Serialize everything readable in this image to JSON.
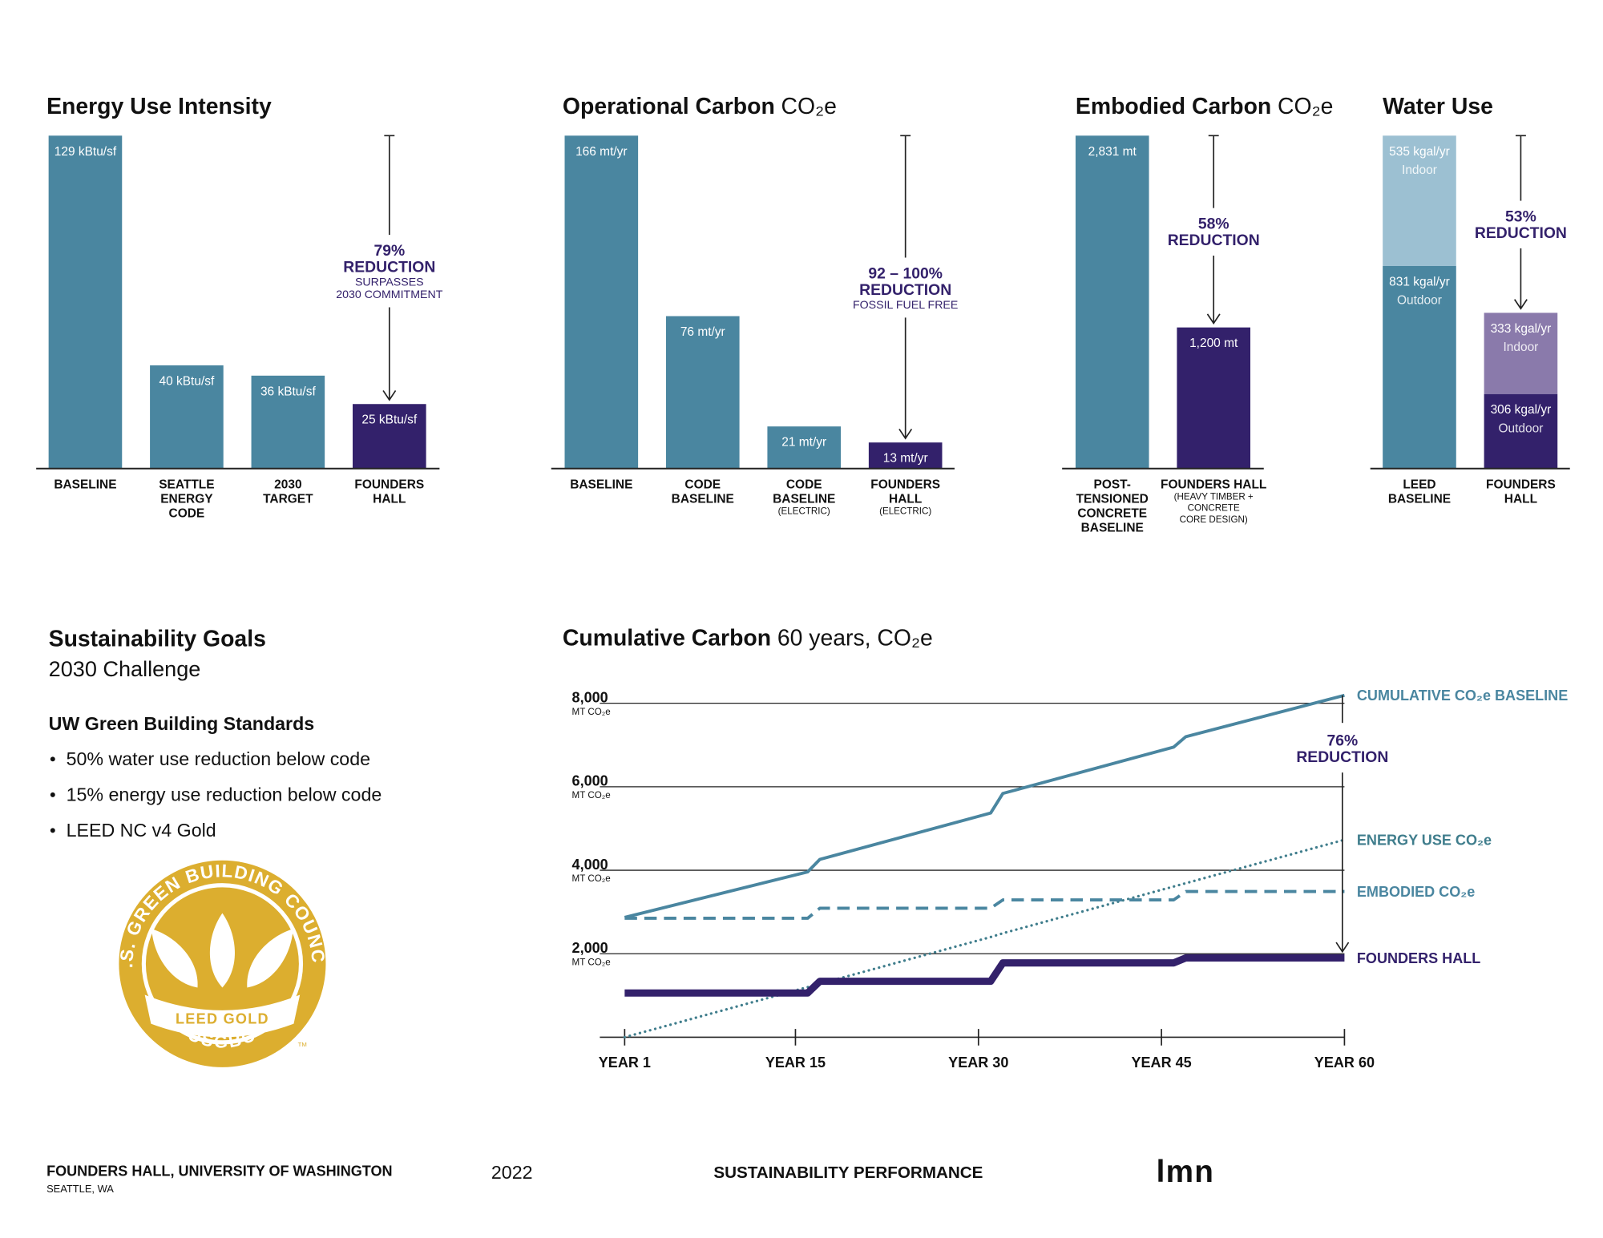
{
  "chart_data": [
    {
      "type": "bar",
      "title": "Energy Use Intensity",
      "categories": [
        [
          "BASELINE"
        ],
        [
          "SEATTLE",
          "ENERGY",
          "CODE"
        ],
        [
          "2030",
          "TARGET"
        ],
        [
          "FOUNDERS",
          "HALL"
        ]
      ],
      "values": [
        129,
        40,
        36,
        25
      ],
      "value_labels": [
        "129 kBtu/sf",
        "40 kBtu/sf",
        "36 kBtu/sf",
        "25 kBtu/sf"
      ],
      "colors": [
        "#4a86a0",
        "#4a86a0",
        "#4a86a0",
        "#33216b"
      ],
      "annotation": {
        "headline": [
          "79%",
          "REDUCTION"
        ],
        "note": [
          "SURPASSES",
          "2030 COMMITMENT"
        ]
      }
    },
    {
      "type": "bar",
      "title": "Operational Carbon",
      "subtitle": "CO₂e",
      "categories": [
        [
          "BASELINE"
        ],
        [
          "CODE",
          "BASELINE"
        ],
        [
          "CODE",
          "BASELINE"
        ],
        [
          "FOUNDERS",
          "HALL"
        ]
      ],
      "category_notes": [
        null,
        null,
        [
          "(ELECTRIC)"
        ],
        [
          "(ELECTRIC)"
        ]
      ],
      "values": [
        166,
        76,
        21,
        13
      ],
      "value_labels": [
        "166 mt/yr",
        "76 mt/yr",
        "21 mt/yr",
        "13 mt/yr"
      ],
      "colors": [
        "#4a86a0",
        "#4a86a0",
        "#4a86a0",
        "#33216b"
      ],
      "annotation": {
        "headline": [
          "92 – 100%",
          "REDUCTION"
        ],
        "note": [
          "FOSSIL FUEL FREE"
        ]
      }
    },
    {
      "type": "bar",
      "title": "Embodied Carbon",
      "subtitle": "CO₂e",
      "categories": [
        [
          "POST-",
          "TENSIONED",
          "CONCRETE",
          "BASELINE"
        ],
        [
          "FOUNDERS HALL"
        ]
      ],
      "category_notes": [
        null,
        [
          "(HEAVY TIMBER +",
          "CONCRETE",
          "CORE DESIGN)"
        ]
      ],
      "values": [
        2831,
        1200
      ],
      "value_labels": [
        "2,831 mt",
        "1,200 mt"
      ],
      "colors": [
        "#4a86a0",
        "#33216b"
      ],
      "annotation": {
        "headline": [
          "58%",
          "REDUCTION"
        ]
      }
    },
    {
      "type": "stacked_bar",
      "title": "Water Use",
      "categories": [
        [
          "LEED",
          "BASELINE"
        ],
        [
          "FOUNDERS",
          "HALL"
        ]
      ],
      "series": [
        {
          "name": "Outdoor",
          "colors": [
            "#4a86a0",
            "#33216b"
          ],
          "values": [
            831,
            306
          ],
          "value_labels": [
            "831 kgal/yr",
            "306 kgal/yr"
          ]
        },
        {
          "name": "Indoor",
          "colors": [
            "#9cc0d2",
            "#8a7aab"
          ],
          "values": [
            535,
            333
          ],
          "value_labels": [
            "535 kgal/yr",
            "333 kgal/yr"
          ]
        }
      ],
      "annotation": {
        "headline": [
          "53%",
          "REDUCTION"
        ]
      }
    },
    {
      "type": "line",
      "title": "Cumulative Carbon",
      "subtitle": "60 years, CO₂e",
      "x": [
        1,
        16,
        17,
        31,
        32,
        46,
        47,
        60
      ],
      "xlim": [
        1,
        60
      ],
      "xticks": [
        {
          "value": 1,
          "label": "YEAR 1"
        },
        {
          "value": 15,
          "label": "YEAR 15"
        },
        {
          "value": 30,
          "label": "YEAR 30"
        },
        {
          "value": 45,
          "label": "YEAR 45"
        },
        {
          "value": 60,
          "label": "YEAR 60"
        }
      ],
      "ylim": [
        0,
        8000
      ],
      "yticks": [
        {
          "value": 2000,
          "label": "2,000"
        },
        {
          "value": 4000,
          "label": "4,000"
        },
        {
          "value": 6000,
          "label": "6,000"
        },
        {
          "value": 8000,
          "label": "8,000"
        }
      ],
      "ytick_unit": "MT CO₂e",
      "grid": true,
      "series": [
        {
          "name": "CUMULATIVE CO₂e BASELINE",
          "color": "#4a86a0",
          "style": "solid",
          "values": [
            2870,
            3960,
            4260,
            5370,
            5840,
            6950,
            7200,
            8190
          ]
        },
        {
          "name": "ENERGY USE CO₂e",
          "color": "#3f7d8c",
          "style": "dotted",
          "values": [
            0,
            1200,
            1280,
            2400,
            2490,
            3610,
            3690,
            4730
          ]
        },
        {
          "name": "EMBODIED CO₂e",
          "color": "#4a86a0",
          "style": "dashed",
          "values": [
            2850,
            2850,
            3090,
            3090,
            3290,
            3290,
            3490,
            3490
          ]
        },
        {
          "name": "FOUNDERS HALL",
          "color": "#33216b",
          "style": "thick",
          "values": [
            1060,
            1060,
            1340,
            1340,
            1780,
            1780,
            1900,
            1900
          ]
        }
      ],
      "annotation": {
        "headline": [
          "76%",
          "REDUCTION"
        ]
      }
    }
  ],
  "goals": {
    "title": "Sustainability Goals",
    "subtitle": "2030 Challenge",
    "heading": "UW Green Building Standards",
    "items": [
      "50% water use reduction below code",
      "15% energy use reduction below code",
      "LEED NC v4 Gold"
    ]
  },
  "badge": {
    "ring": "U.S. GREEN BUILDING COUNCIL",
    "banner": "LEED GOLD",
    "bottom": "USGBC",
    "mark": "TM"
  },
  "footer": {
    "project": "FOUNDERS HALL, UNIVERSITY OF WASHINGTON",
    "location": "SEATTLE, WA",
    "year": "2022",
    "section": "SUSTAINABILITY PERFORMANCE",
    "logo": "lmn"
  }
}
